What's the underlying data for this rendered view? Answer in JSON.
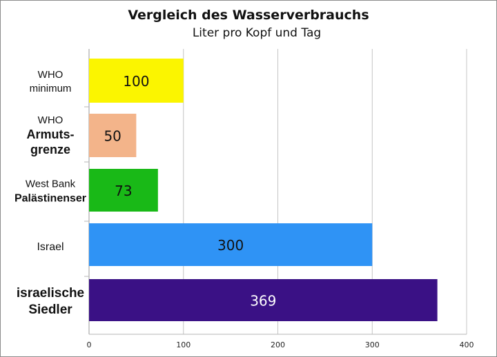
{
  "chart_data": {
    "type": "bar",
    "orientation": "horizontal",
    "title": "Vergleich des Wasserverbrauchs",
    "subtitle": "Liter pro Kopf und Tag",
    "categories": [
      [
        "WHO",
        "minimum"
      ],
      [
        "WHO",
        "Armuts-",
        "grenze"
      ],
      [
        "West Bank",
        "Palästinenser"
      ],
      [
        "Israel"
      ],
      [
        "israelische",
        "Siedler"
      ]
    ],
    "values": [
      100,
      50,
      73,
      300,
      369
    ],
    "data_labels": [
      "100",
      "50",
      "73",
      "300",
      "369"
    ],
    "colors": [
      "#fbf500",
      "#f3b48a",
      "#19b917",
      "#2f93f5",
      "#3a1185"
    ],
    "label_colors": [
      "#111111",
      "#111111",
      "#111111",
      "#111111",
      "#ffffff"
    ],
    "xlim": [
      0,
      400
    ],
    "xticks": [
      "0",
      "100",
      "200",
      "300",
      "400"
    ],
    "grid": true,
    "legend": "none"
  }
}
